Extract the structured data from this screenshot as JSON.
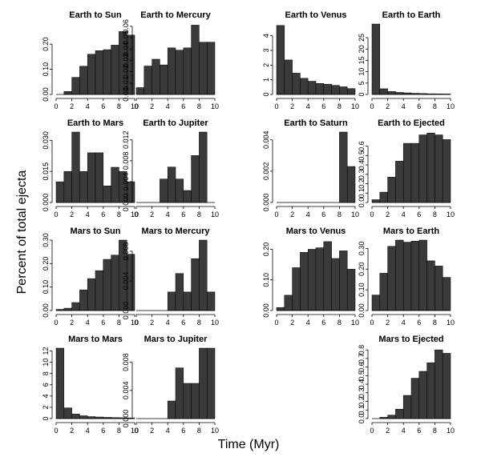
{
  "figure": {
    "ylabel": "Percent of total ejecta",
    "xlabel": "Time (Myr)"
  },
  "chart_data": [
    {
      "type": "bar",
      "title": "Earth to Sun",
      "xlim": [
        0,
        10
      ],
      "xticks": [
        "0",
        "2",
        "4",
        "6",
        "8",
        "10"
      ],
      "ylim": [
        0,
        0.28
      ],
      "yticks": [
        "0.00",
        "0.10",
        "0.20"
      ],
      "values": [
        0.0,
        0.012,
        0.068,
        0.112,
        0.16,
        0.174,
        0.178,
        0.196,
        0.25,
        0.236
      ]
    },
    {
      "type": "bar",
      "title": "Earth to Mercury",
      "xlim": [
        0,
        10
      ],
      "xticks": [
        "0",
        "2",
        "4",
        "6",
        "8",
        "10"
      ],
      "ylim": [
        0,
        0.062
      ],
      "yticks": [
        "0.00",
        "0.01",
        "0.02",
        "0.03",
        "0.04",
        "0.05",
        "0.06"
      ],
      "values": [
        0.006,
        0.025,
        0.031,
        0.026,
        0.041,
        0.039,
        0.041,
        0.061,
        0.046,
        0.046
      ]
    },
    {
      "type": "bar",
      "title": "Earth to Venus",
      "xlim": [
        0,
        10
      ],
      "xticks": [
        "0",
        "2",
        "4",
        "6",
        "8",
        "10"
      ],
      "ylim": [
        0,
        4.8
      ],
      "yticks": [
        "0",
        "1",
        "2",
        "3",
        "4"
      ],
      "values": [
        4.7,
        2.35,
        1.45,
        1.1,
        0.9,
        0.75,
        0.7,
        0.62,
        0.52,
        0.4
      ]
    },
    {
      "type": "bar",
      "title": "Earth to Earth",
      "xlim": [
        0,
        10
      ],
      "xticks": [
        "0",
        "2",
        "4",
        "6",
        "8",
        "10"
      ],
      "ylim": [
        0,
        31
      ],
      "yticks": [
        "0",
        "5",
        "10",
        "15",
        "20",
        "25"
      ],
      "values": [
        31,
        2.5,
        1.3,
        0.9,
        0.7,
        0.5,
        0.4,
        0.3,
        0.25,
        0.2
      ]
    },
    {
      "type": "bar",
      "title": "Earth to Mars",
      "xlim": [
        0,
        10
      ],
      "xticks": [
        "0",
        "2",
        "4",
        "6",
        "8",
        "10"
      ],
      "ylim": [
        0,
        0.034
      ],
      "yticks": [
        "0.000",
        "0.015",
        "0.030"
      ],
      "values": [
        0.01,
        0.015,
        0.034,
        0.015,
        0.024,
        0.024,
        0.008,
        0.017,
        0.015,
        0.01
      ]
    },
    {
      "type": "bar",
      "title": "Earth to Jupiter",
      "xlim": [
        0,
        10
      ],
      "xticks": [
        "0",
        "2",
        "4",
        "6",
        "8",
        "10"
      ],
      "ylim": [
        0,
        0.0135
      ],
      "yticks": [
        "0.000",
        "0.004",
        "0.008",
        "0.012"
      ],
      "values": [
        0,
        0,
        0,
        0.0045,
        0.0068,
        0.0045,
        0.0023,
        0.009,
        0.0135,
        0
      ]
    },
    {
      "type": "bar",
      "title": "Earth to Saturn",
      "xlim": [
        0,
        10
      ],
      "xticks": [
        "0",
        "2",
        "4",
        "6",
        "8",
        "10"
      ],
      "ylim": [
        0,
        0.0045
      ],
      "yticks": [
        "0.000",
        "0.002",
        "0.004"
      ],
      "values": [
        0,
        0,
        0,
        0,
        0,
        0,
        0,
        0,
        0.0045,
        0.0023
      ]
    },
    {
      "type": "bar",
      "title": "Earth to Ejected",
      "xlim": [
        0,
        10
      ],
      "xticks": [
        "0",
        "2",
        "4",
        "6",
        "8",
        "10"
      ],
      "ylim": [
        0,
        0.75
      ],
      "yticks": [
        "0.0",
        "0.1",
        "0.2",
        "0.3",
        "0.4",
        "0.5",
        "0.6"
      ],
      "values": [
        0.03,
        0.11,
        0.27,
        0.44,
        0.63,
        0.63,
        0.72,
        0.74,
        0.72,
        0.67
      ]
    },
    {
      "type": "bar",
      "title": "Mars to Sun",
      "xlim": [
        0,
        10
      ],
      "xticks": [
        "0",
        "2",
        "4",
        "6",
        "8",
        "10"
      ],
      "ylim": [
        0,
        0.3
      ],
      "yticks": [
        "0.00",
        "0.10",
        "0.20",
        "0.30"
      ],
      "values": [
        0.005,
        0.01,
        0.034,
        0.088,
        0.136,
        0.17,
        0.218,
        0.236,
        0.3,
        0.24
      ]
    },
    {
      "type": "bar",
      "title": "Mars to Mercury",
      "xlim": [
        0,
        10
      ],
      "xticks": [
        "0",
        "2",
        "4",
        "6",
        "8",
        "10"
      ],
      "ylim": [
        0,
        0.0095
      ],
      "yticks": [
        "0.000",
        "0.004",
        "0.008"
      ],
      "values": [
        0,
        0,
        0,
        0,
        0.0025,
        0.005,
        0.0025,
        0.007,
        0.0095,
        0.0025
      ]
    },
    {
      "type": "bar",
      "title": "Mars to Venus",
      "xlim": [
        0,
        10
      ],
      "xticks": [
        "0",
        "2",
        "4",
        "6",
        "8",
        "10"
      ],
      "ylim": [
        0,
        0.23
      ],
      "yticks": [
        "0.00",
        "0.10",
        "0.20"
      ],
      "values": [
        0.01,
        0.05,
        0.14,
        0.19,
        0.2,
        0.205,
        0.225,
        0.17,
        0.195,
        0.135
      ]
    },
    {
      "type": "bar",
      "title": "Mars to Earth",
      "xlim": [
        0,
        10
      ],
      "xticks": [
        "0",
        "2",
        "4",
        "6",
        "8",
        "10"
      ],
      "ylim": [
        0,
        0.34
      ],
      "yticks": [
        "0.00",
        "0.10",
        "0.20",
        "0.30"
      ],
      "values": [
        0.075,
        0.18,
        0.31,
        0.34,
        0.33,
        0.335,
        0.34,
        0.24,
        0.215,
        0.16
      ]
    },
    {
      "type": "bar",
      "title": "Mars to Mars",
      "xlim": [
        0,
        10
      ],
      "xticks": [
        "0",
        "2",
        "4",
        "6",
        "8",
        "10"
      ],
      "ylim": [
        0,
        12.5
      ],
      "yticks": [
        "0",
        "2",
        "4",
        "6",
        "8",
        "10",
        "12"
      ],
      "values": [
        12.5,
        1.9,
        0.8,
        0.5,
        0.35,
        0.28,
        0.22,
        0.18,
        0.15,
        0.12
      ]
    },
    {
      "type": "bar",
      "title": "Mars to Jupiter",
      "xlim": [
        0,
        10
      ],
      "xticks": [
        "0",
        "2",
        "4",
        "6",
        "8",
        "10"
      ],
      "ylim": [
        0,
        0.01
      ],
      "yticks": [
        "0.000",
        "0.004",
        "0.008"
      ],
      "values": [
        0,
        0,
        0,
        0,
        0.0025,
        0.0072,
        0.005,
        0.005,
        0.01,
        0.01
      ]
    },
    null,
    {
      "type": "bar",
      "title": "Mars to Ejected",
      "xlim": [
        0,
        10
      ],
      "xticks": [
        "0",
        "2",
        "4",
        "6",
        "8",
        "10"
      ],
      "ylim": [
        0,
        0.82
      ],
      "yticks": [
        "0.0",
        "0.1",
        "0.2",
        "0.3",
        "0.4",
        "0.5",
        "0.6",
        "0.7",
        "0.8"
      ],
      "values": [
        0.0,
        0.015,
        0.04,
        0.11,
        0.27,
        0.47,
        0.55,
        0.65,
        0.8,
        0.76
      ]
    }
  ]
}
